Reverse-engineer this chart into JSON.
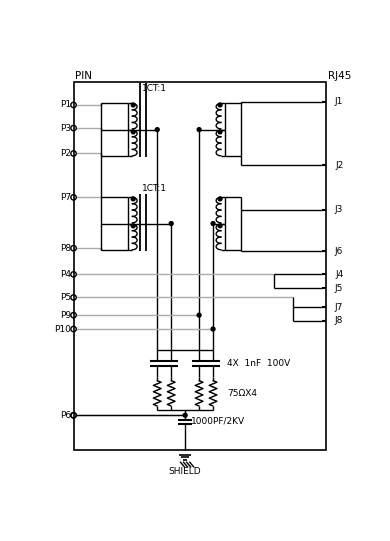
{
  "bg_color": "#ffffff",
  "line_color_dark": "#000000",
  "line_color_gray": "#aaaaaa",
  "pin_label": "PIN",
  "rj45_label": "RJ45",
  "shield_label": "SHIELD",
  "cap_label1": "4X  1nF  100V",
  "cap_label2": "75ΩX4",
  "cap_label3": "1000PF/2KV",
  "ct_label1": "1CT:1",
  "ct_label2": "1CT:1",
  "fig_width": 3.9,
  "fig_height": 5.41
}
